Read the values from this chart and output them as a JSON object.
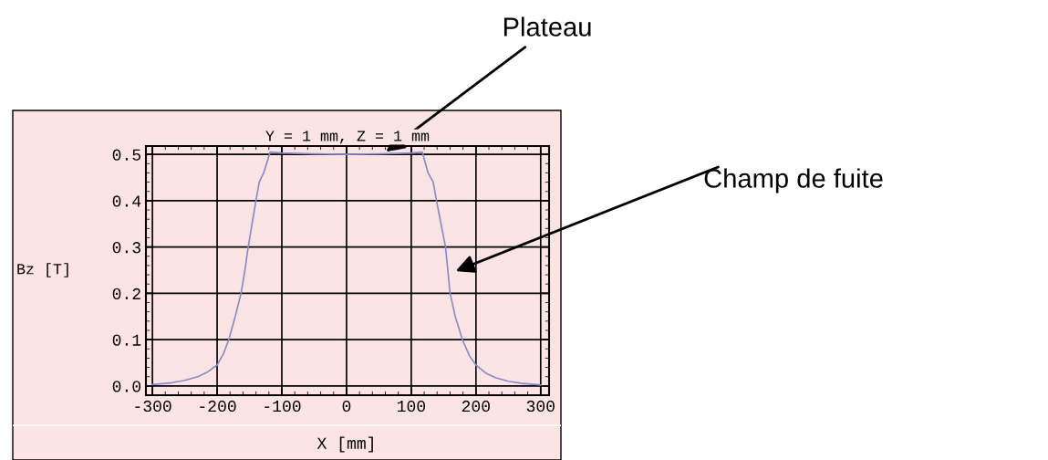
{
  "chart_data": {
    "type": "line",
    "title": "Y = 1 mm, Z = 1 mm",
    "xlabel": "X [mm]",
    "ylabel": "Bz [T]",
    "annotations": [
      "Plateau",
      "Champ de fuite"
    ],
    "series": [
      {
        "color": "#8a8ac8",
        "x": [
          -300,
          -270,
          -250,
          -230,
          -215,
          -200,
          -190,
          -182,
          -172,
          -163,
          -157,
          -152,
          -146,
          -140,
          -135,
          -128,
          -118,
          -100,
          -50,
          0,
          50,
          100,
          117,
          126,
          134,
          139,
          146,
          153,
          160,
          168,
          179,
          190,
          200,
          215,
          230,
          250,
          270,
          300
        ],
        "values": [
          0.003,
          0.007,
          0.012,
          0.02,
          0.03,
          0.045,
          0.07,
          0.1,
          0.15,
          0.2,
          0.25,
          0.3,
          0.35,
          0.4,
          0.44,
          0.46,
          0.505,
          0.503,
          0.501,
          0.5,
          0.501,
          0.503,
          0.505,
          0.46,
          0.44,
          0.4,
          0.35,
          0.3,
          0.2,
          0.15,
          0.1,
          0.065,
          0.045,
          0.028,
          0.018,
          0.01,
          0.006,
          0.002
        ]
      }
    ],
    "xlim": [
      -310,
      313
    ],
    "ylim": [
      -0.02,
      0.518
    ],
    "xticks": [
      -300,
      -200,
      -100,
      0,
      100,
      200,
      300
    ],
    "yticks": [
      {
        "value": 0,
        "label": "0.0"
      },
      0.1,
      0.2,
      0.3,
      0.4,
      0.5
    ],
    "grid": true,
    "marker": "none",
    "line_style": "solid"
  }
}
